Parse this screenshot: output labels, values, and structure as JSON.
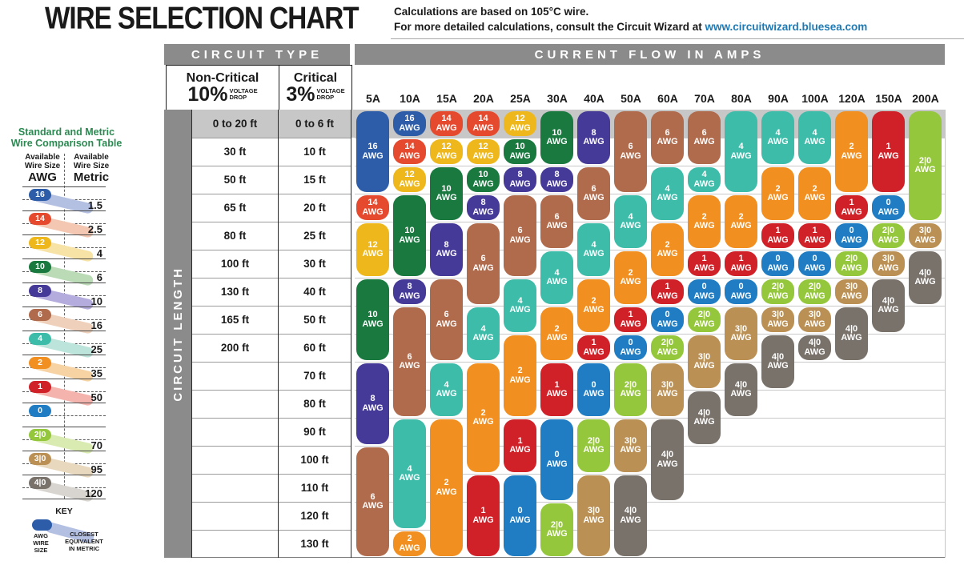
{
  "header": {
    "title": "WIRE SELECTION CHART",
    "note_line1": "Calculations are based on 105°C wire.",
    "note_line2": "For more detailed calculations, consult the Circuit Wizard at ",
    "link": "www.circuitwizard.bluesea.com",
    "link_color": "#1d7ab5"
  },
  "sidebar": {
    "title_line1": "Standard and Metric",
    "title_line2": "Wire Comparison Table",
    "title_color": "#2b8a51",
    "col_left_line1": "Available",
    "col_left_line2": "Wire Size",
    "col_left_unit": "AWG",
    "col_right_line1": "Available",
    "col_right_line2": "Wire Size",
    "col_right_unit": "Metric",
    "rows": [
      {
        "awg": "16",
        "metric": "1.5"
      },
      {
        "awg": "14",
        "metric": "2.5"
      },
      {
        "awg": "12",
        "metric": "4"
      },
      {
        "awg": "10",
        "metric": "6"
      },
      {
        "awg": "8",
        "metric": "10"
      },
      {
        "awg": "6",
        "metric": "16"
      },
      {
        "awg": "4",
        "metric": "25"
      },
      {
        "awg": "2",
        "metric": "35"
      },
      {
        "awg": "1",
        "metric": "50"
      },
      {
        "awg": "0",
        "metric": ""
      },
      {
        "awg": "2|0",
        "metric": "70"
      },
      {
        "awg": "3|0",
        "metric": "95"
      },
      {
        "awg": "4|0",
        "metric": "120"
      }
    ],
    "key": {
      "title": "KEY",
      "left_label": "AWG\nWIRE\nSIZE",
      "right_label": "CLOSEST\nEQUIVALENT\nIN METRIC"
    }
  },
  "table": {
    "circuit_type_header": "CIRCUIT TYPE",
    "amps_header": "CURRENT FLOW IN AMPS",
    "non_critical_title": "Non-Critical",
    "non_critical_pct": "10%",
    "non_critical_sub1": "VOLTAGE",
    "non_critical_sub2": "DROP",
    "critical_title": "Critical",
    "critical_pct": "3%",
    "critical_sub1": "VOLTAGE",
    "critical_sub2": "DROP",
    "circuit_length_label": "CIRCUIT LENGTH"
  },
  "chart_data": {
    "type": "table",
    "title": "WIRE SELECTION CHART",
    "x_axis": "Current flow in amps",
    "y_axis": "Circuit length (ft), non-critical 10% drop vs critical 3% drop",
    "unit_suffix": "AWG",
    "columns": [
      "5A",
      "10A",
      "15A",
      "20A",
      "25A",
      "30A",
      "40A",
      "50A",
      "60A",
      "70A",
      "80A",
      "90A",
      "100A",
      "120A",
      "150A",
      "200A"
    ],
    "row_labels_non_critical_10pct": [
      "0 to 20 ft",
      "30 ft",
      "50 ft",
      "65 ft",
      "80 ft",
      "100 ft",
      "130 ft",
      "165 ft",
      "200 ft",
      "",
      "",
      "",
      "",
      "",
      "",
      ""
    ],
    "row_labels_critical_3pct": [
      "0 to 6 ft",
      "10 ft",
      "15 ft",
      "20 ft",
      "25 ft",
      "30 ft",
      "40 ft",
      "50 ft",
      "60 ft",
      "70 ft",
      "80 ft",
      "90 ft",
      "100 ft",
      "110 ft",
      "120 ft",
      "130 ft"
    ],
    "awg_colors": {
      "16": "#2d5ca8",
      "14": "#e54a2e",
      "12": "#eeb71c",
      "10": "#19793f",
      "8": "#463a99",
      "6": "#b06a4c",
      "4": "#3ebcaa",
      "2": "#f18f21",
      "1": "#d02128",
      "0": "#207dc3",
      "2|0": "#94c73c",
      "3|0": "#bb9055",
      "4|0": "#79726b"
    },
    "awg_band_colors": {
      "16": "#b4c0e2",
      "14": "#f3c7b1",
      "12": "#f8e3a6",
      "10": "#badbb6",
      "8": "#b4acdc",
      "6": "#eed0bb",
      "4": "#bde4db",
      "2": "#f7d3a3",
      "1": "#f4b4ad",
      "0": "",
      "2|0": "#d9ebb1",
      "3|0": "#e8d8be",
      "4|0": "#d8d4cf"
    },
    "cells": [
      {
        "amps": "5A",
        "pills": [
          {
            "awg": "16",
            "rows": [
              1,
              3
            ]
          },
          {
            "awg": "14",
            "rows": [
              4,
              4
            ]
          },
          {
            "awg": "12",
            "rows": [
              5,
              6
            ]
          },
          {
            "awg": "10",
            "rows": [
              7,
              9
            ]
          },
          {
            "awg": "8",
            "rows": [
              10,
              12
            ]
          },
          {
            "awg": "6",
            "rows": [
              13,
              16
            ]
          }
        ]
      },
      {
        "amps": "10A",
        "pills": [
          {
            "awg": "16",
            "rows": [
              1,
              1
            ]
          },
          {
            "awg": "14",
            "rows": [
              2,
              2
            ]
          },
          {
            "awg": "12",
            "rows": [
              3,
              3
            ]
          },
          {
            "awg": "10",
            "rows": [
              4,
              6
            ]
          },
          {
            "awg": "8",
            "rows": [
              7,
              7
            ]
          },
          {
            "awg": "6",
            "rows": [
              8,
              11
            ]
          },
          {
            "awg": "4",
            "rows": [
              12,
              15
            ]
          },
          {
            "awg": "2",
            "rows": [
              16,
              16
            ]
          }
        ]
      },
      {
        "amps": "15A",
        "pills": [
          {
            "awg": "14",
            "rows": [
              1,
              1
            ]
          },
          {
            "awg": "12",
            "rows": [
              2,
              2
            ]
          },
          {
            "awg": "10",
            "rows": [
              3,
              4
            ]
          },
          {
            "awg": "8",
            "rows": [
              5,
              6
            ]
          },
          {
            "awg": "6",
            "rows": [
              7,
              9
            ]
          },
          {
            "awg": "4",
            "rows": [
              10,
              11
            ]
          },
          {
            "awg": "2",
            "rows": [
              12,
              16
            ]
          }
        ]
      },
      {
        "amps": "20A",
        "pills": [
          {
            "awg": "14",
            "rows": [
              1,
              1
            ]
          },
          {
            "awg": "12",
            "rows": [
              2,
              2
            ]
          },
          {
            "awg": "10",
            "rows": [
              3,
              3
            ]
          },
          {
            "awg": "8",
            "rows": [
              4,
              4
            ]
          },
          {
            "awg": "6",
            "rows": [
              5,
              7
            ]
          },
          {
            "awg": "4",
            "rows": [
              8,
              9
            ]
          },
          {
            "awg": "2",
            "rows": [
              10,
              13
            ]
          },
          {
            "awg": "1",
            "rows": [
              14,
              16
            ]
          }
        ]
      },
      {
        "amps": "25A",
        "pills": [
          {
            "awg": "12",
            "rows": [
              1,
              1
            ]
          },
          {
            "awg": "10",
            "rows": [
              2,
              2
            ]
          },
          {
            "awg": "8",
            "rows": [
              3,
              3
            ]
          },
          {
            "awg": "6",
            "rows": [
              4,
              6
            ]
          },
          {
            "awg": "4",
            "rows": [
              7,
              8
            ]
          },
          {
            "awg": "2",
            "rows": [
              9,
              11
            ]
          },
          {
            "awg": "1",
            "rows": [
              12,
              13
            ]
          },
          {
            "awg": "0",
            "rows": [
              14,
              16
            ]
          }
        ]
      },
      {
        "amps": "30A",
        "pills": [
          {
            "awg": "10",
            "rows": [
              1,
              2
            ]
          },
          {
            "awg": "8",
            "rows": [
              3,
              3
            ]
          },
          {
            "awg": "6",
            "rows": [
              4,
              5
            ]
          },
          {
            "awg": "4",
            "rows": [
              6,
              7
            ]
          },
          {
            "awg": "2",
            "rows": [
              8,
              9
            ]
          },
          {
            "awg": "1",
            "rows": [
              10,
              11
            ]
          },
          {
            "awg": "0",
            "rows": [
              12,
              14
            ]
          },
          {
            "awg": "2|0",
            "rows": [
              15,
              16
            ]
          }
        ]
      },
      {
        "amps": "40A",
        "pills": [
          {
            "awg": "8",
            "rows": [
              1,
              2
            ]
          },
          {
            "awg": "6",
            "rows": [
              3,
              4
            ]
          },
          {
            "awg": "4",
            "rows": [
              5,
              6
            ]
          },
          {
            "awg": "2",
            "rows": [
              7,
              8
            ]
          },
          {
            "awg": "1",
            "rows": [
              9,
              9
            ]
          },
          {
            "awg": "0",
            "rows": [
              10,
              11
            ]
          },
          {
            "awg": "2|0",
            "rows": [
              12,
              13
            ]
          },
          {
            "awg": "3|0",
            "rows": [
              14,
              16
            ]
          }
        ]
      },
      {
        "amps": "50A",
        "pills": [
          {
            "awg": "6",
            "rows": [
              1,
              3
            ]
          },
          {
            "awg": "4",
            "rows": [
              4,
              5
            ]
          },
          {
            "awg": "2",
            "rows": [
              6,
              7
            ]
          },
          {
            "awg": "1",
            "rows": [
              8,
              8
            ]
          },
          {
            "awg": "0",
            "rows": [
              9,
              9
            ]
          },
          {
            "awg": "2|0",
            "rows": [
              10,
              11
            ]
          },
          {
            "awg": "3|0",
            "rows": [
              12,
              13
            ]
          },
          {
            "awg": "4|0",
            "rows": [
              14,
              16
            ]
          }
        ]
      },
      {
        "amps": "60A",
        "pills": [
          {
            "awg": "6",
            "rows": [
              1,
              2
            ]
          },
          {
            "awg": "4",
            "rows": [
              3,
              4
            ]
          },
          {
            "awg": "2",
            "rows": [
              5,
              6
            ]
          },
          {
            "awg": "1",
            "rows": [
              7,
              7
            ]
          },
          {
            "awg": "0",
            "rows": [
              8,
              8
            ]
          },
          {
            "awg": "2|0",
            "rows": [
              9,
              9
            ]
          },
          {
            "awg": "3|0",
            "rows": [
              10,
              11
            ]
          },
          {
            "awg": "4|0",
            "rows": [
              12,
              14
            ]
          }
        ]
      },
      {
        "amps": "70A",
        "pills": [
          {
            "awg": "6",
            "rows": [
              1,
              2
            ]
          },
          {
            "awg": "4",
            "rows": [
              3,
              3
            ]
          },
          {
            "awg": "2",
            "rows": [
              4,
              5
            ]
          },
          {
            "awg": "1",
            "rows": [
              6,
              6
            ]
          },
          {
            "awg": "0",
            "rows": [
              7,
              7
            ]
          },
          {
            "awg": "2|0",
            "rows": [
              8,
              8
            ]
          },
          {
            "awg": "3|0",
            "rows": [
              9,
              10
            ]
          },
          {
            "awg": "4|0",
            "rows": [
              11,
              12
            ]
          }
        ]
      },
      {
        "amps": "80A",
        "pills": [
          {
            "awg": "4",
            "rows": [
              1,
              3
            ]
          },
          {
            "awg": "2",
            "rows": [
              4,
              5
            ]
          },
          {
            "awg": "1",
            "rows": [
              6,
              6
            ]
          },
          {
            "awg": "0",
            "rows": [
              7,
              7
            ]
          },
          {
            "awg": "3|0",
            "rows": [
              8,
              9
            ]
          },
          {
            "awg": "4|0",
            "rows": [
              10,
              11
            ]
          }
        ]
      },
      {
        "amps": "90A",
        "pills": [
          {
            "awg": "4",
            "rows": [
              1,
              2
            ]
          },
          {
            "awg": "2",
            "rows": [
              3,
              4
            ]
          },
          {
            "awg": "1",
            "rows": [
              5,
              5
            ]
          },
          {
            "awg": "0",
            "rows": [
              6,
              6
            ]
          },
          {
            "awg": "2|0",
            "rows": [
              7,
              7
            ]
          },
          {
            "awg": "3|0",
            "rows": [
              8,
              8
            ]
          },
          {
            "awg": "4|0",
            "rows": [
              9,
              10
            ]
          }
        ]
      },
      {
        "amps": "100A",
        "pills": [
          {
            "awg": "4",
            "rows": [
              1,
              2
            ]
          },
          {
            "awg": "2",
            "rows": [
              3,
              4
            ]
          },
          {
            "awg": "1",
            "rows": [
              5,
              5
            ]
          },
          {
            "awg": "0",
            "rows": [
              6,
              6
            ]
          },
          {
            "awg": "2|0",
            "rows": [
              7,
              7
            ]
          },
          {
            "awg": "3|0",
            "rows": [
              8,
              8
            ]
          },
          {
            "awg": "4|0",
            "rows": [
              9,
              9
            ]
          }
        ]
      },
      {
        "amps": "120A",
        "pills": [
          {
            "awg": "2",
            "rows": [
              1,
              3
            ]
          },
          {
            "awg": "1",
            "rows": [
              4,
              4
            ]
          },
          {
            "awg": "0",
            "rows": [
              5,
              5
            ]
          },
          {
            "awg": "2|0",
            "rows": [
              6,
              6
            ]
          },
          {
            "awg": "3|0",
            "rows": [
              7,
              7
            ]
          },
          {
            "awg": "4|0",
            "rows": [
              8,
              9
            ]
          }
        ]
      },
      {
        "amps": "150A",
        "pills": [
          {
            "awg": "1",
            "rows": [
              1,
              3
            ]
          },
          {
            "awg": "0",
            "rows": [
              4,
              4
            ]
          },
          {
            "awg": "2|0",
            "rows": [
              5,
              5
            ]
          },
          {
            "awg": "3|0",
            "rows": [
              6,
              6
            ]
          },
          {
            "awg": "4|0",
            "rows": [
              7,
              8
            ]
          }
        ]
      },
      {
        "amps": "200A",
        "pills": [
          {
            "awg": "2|0",
            "rows": [
              1,
              4
            ]
          },
          {
            "awg": "3|0",
            "rows": [
              5,
              5
            ]
          },
          {
            "awg": "4|0",
            "rows": [
              6,
              7
            ]
          }
        ]
      }
    ]
  },
  "ui_colors": {
    "header_bar": "#8b8b8b",
    "row1_band": "#c7c7c7",
    "grid_line": "#c9c9c9",
    "label_line": "#9b9b9b",
    "border_dark": "#2a2a2a"
  }
}
